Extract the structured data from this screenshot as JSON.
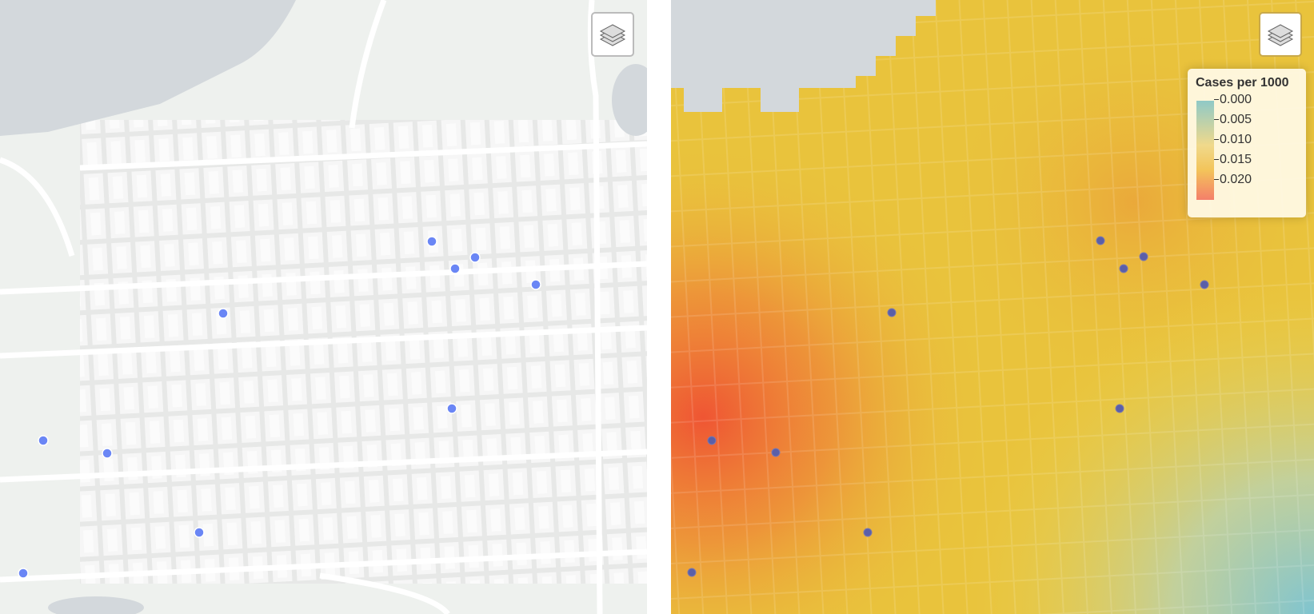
{
  "legend": {
    "title": "Cases per 1000",
    "labels": [
      "0.000",
      "0.005",
      "0.010",
      "0.015",
      "0.020"
    ]
  }
}
